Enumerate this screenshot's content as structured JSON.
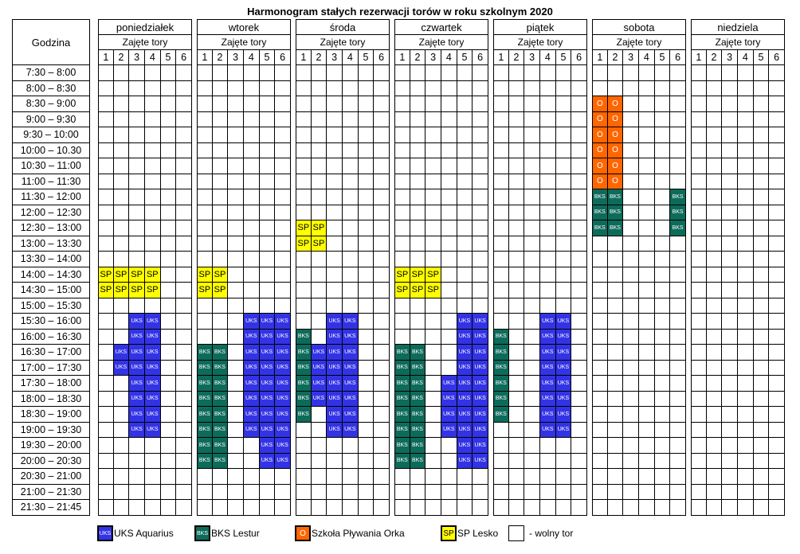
{
  "title": "Harmonogram stałych rezerwacji torów w roku szkolnym 2020",
  "hour_header": "Godzina",
  "lanes_label": "Zajęte tory",
  "lanes": [
    "1",
    "2",
    "3",
    "4",
    "5",
    "6"
  ],
  "times": [
    "7:30 – 8:00",
    "8:00 – 8:30",
    "8:30 – 9:00",
    "9:00 – 9:30",
    "9:30 – 10:00",
    "10:00 – 10.30",
    "10:30 – 11:00",
    "11:00 – 11:30",
    "11:30 – 12:00",
    "12:00 – 12:30",
    "12:30 – 13:00",
    "13:00 – 13:30",
    "13:30 – 14:00",
    "14:00 – 14:30",
    "14:30 – 15:00",
    "15:00 – 15:30",
    "15:30 – 16:00",
    "16:00 – 16:30",
    "16:30 – 17:00",
    "17:00 – 17:30",
    "17:30 – 18:00",
    "18:00 – 18:30",
    "18:30 – 19:00",
    "19:00 – 19:30",
    "19:30 – 20:00",
    "20:00 – 20:30",
    "20:30 – 21:00",
    "21:00 – 21:30",
    "21:30 – 21:45"
  ],
  "codes": {
    "u": "UKS",
    "b": "BKS",
    "s": "SP",
    "o": "O"
  },
  "days": [
    {
      "name": "poniedziałek",
      "grid": [
        "......",
        "......",
        "......",
        "......",
        "......",
        "......",
        "......",
        "......",
        "......",
        "......",
        "......",
        "......",
        "......",
        "ssss..",
        "ssss..",
        "......",
        "..uu..",
        "..uu..",
        ".uuu..",
        ".uuu..",
        "..uu..",
        "..uu..",
        "..uu..",
        "..uu..",
        "......",
        "......",
        "......",
        "......",
        "......"
      ]
    },
    {
      "name": "wtorek",
      "grid": [
        "......",
        "......",
        "......",
        "......",
        "......",
        "......",
        "......",
        "......",
        "......",
        "......",
        "......",
        "......",
        "......",
        "ss....",
        "ss....",
        "......",
        "...uuu",
        "...uuu",
        "bb.uuu",
        "bb.uuu",
        "bb.uuu",
        "bb.uuu",
        "bb.uuu",
        "bb.uuu",
        "bb..uu",
        "bb..uu",
        "......",
        "......",
        "......"
      ]
    },
    {
      "name": "środa",
      "grid": [
        "......",
        "......",
        "......",
        "......",
        "......",
        "......",
        "......",
        "......",
        "......",
        "......",
        "ss....",
        "ss....",
        "......",
        "......",
        "......",
        "......",
        "..uu..",
        "b.uu..",
        "buuu..",
        "buuu..",
        "buuu..",
        "buuu..",
        "b.uu..",
        "..uu..",
        "......",
        "......",
        "......",
        "......",
        "......"
      ]
    },
    {
      "name": "czwartek",
      "grid": [
        "......",
        "......",
        "......",
        "......",
        "......",
        "......",
        "......",
        "......",
        "......",
        "......",
        "......",
        "......",
        "......",
        "sss...",
        "sss...",
        "......",
        "....uu",
        "....uu",
        "bb..uu",
        "bb..uu",
        "bb.uuu",
        "bb.uuu",
        "bb.uuu",
        "bb.uuu",
        "bb..uu",
        "bb..uu",
        "......",
        "......",
        "......"
      ]
    },
    {
      "name": "piątek",
      "grid": [
        "......",
        "......",
        "......",
        "......",
        "......",
        "......",
        "......",
        "......",
        "......",
        "......",
        "......",
        "......",
        "......",
        "......",
        "......",
        "......",
        "...uu.",
        "b..uu.",
        "b..uu.",
        "b..uu.",
        "b..uu.",
        "b..uu.",
        "b..uu.",
        "...uu.",
        "......",
        "......",
        "......",
        "......",
        "......"
      ]
    },
    {
      "name": "sobota",
      "grid": [
        "......",
        "......",
        "oo....",
        "oo....",
        "oo....",
        "oo....",
        "oo....",
        "oo....",
        "bb...b",
        "bb...b",
        "bb...b",
        "......",
        "......",
        "......",
        "......",
        "......",
        "......",
        "......",
        "......",
        "......",
        "......",
        "......",
        "......",
        "......",
        "......",
        "......",
        "......",
        "......",
        "......"
      ]
    },
    {
      "name": "niedziela",
      "grid": [
        "......",
        "......",
        "......",
        "......",
        "......",
        "......",
        "......",
        "......",
        "......",
        "......",
        "......",
        "......",
        "......",
        "......",
        "......",
        "......",
        "......",
        "......",
        "......",
        "......",
        "......",
        "......",
        "......",
        "......",
        "......",
        "......",
        "......",
        "......",
        "......"
      ]
    }
  ],
  "legend": [
    {
      "key": "u",
      "label": "UKS Aquarius",
      "swatch": "UKS",
      "color": "#3333e6"
    },
    {
      "key": "b",
      "label": "BKS Lestur",
      "swatch": "BKS",
      "color": "#0d6b5a"
    },
    {
      "key": "o",
      "label": "Szkoła Pływania Orka",
      "swatch": "O",
      "color": "#ff6600"
    },
    {
      "key": "s",
      "label": "SP Lesko",
      "swatch": "SP",
      "color": "#ffff00"
    },
    {
      "key": "f",
      "label": "- wolny tor",
      "swatch": "",
      "color": "#ffffff"
    }
  ]
}
